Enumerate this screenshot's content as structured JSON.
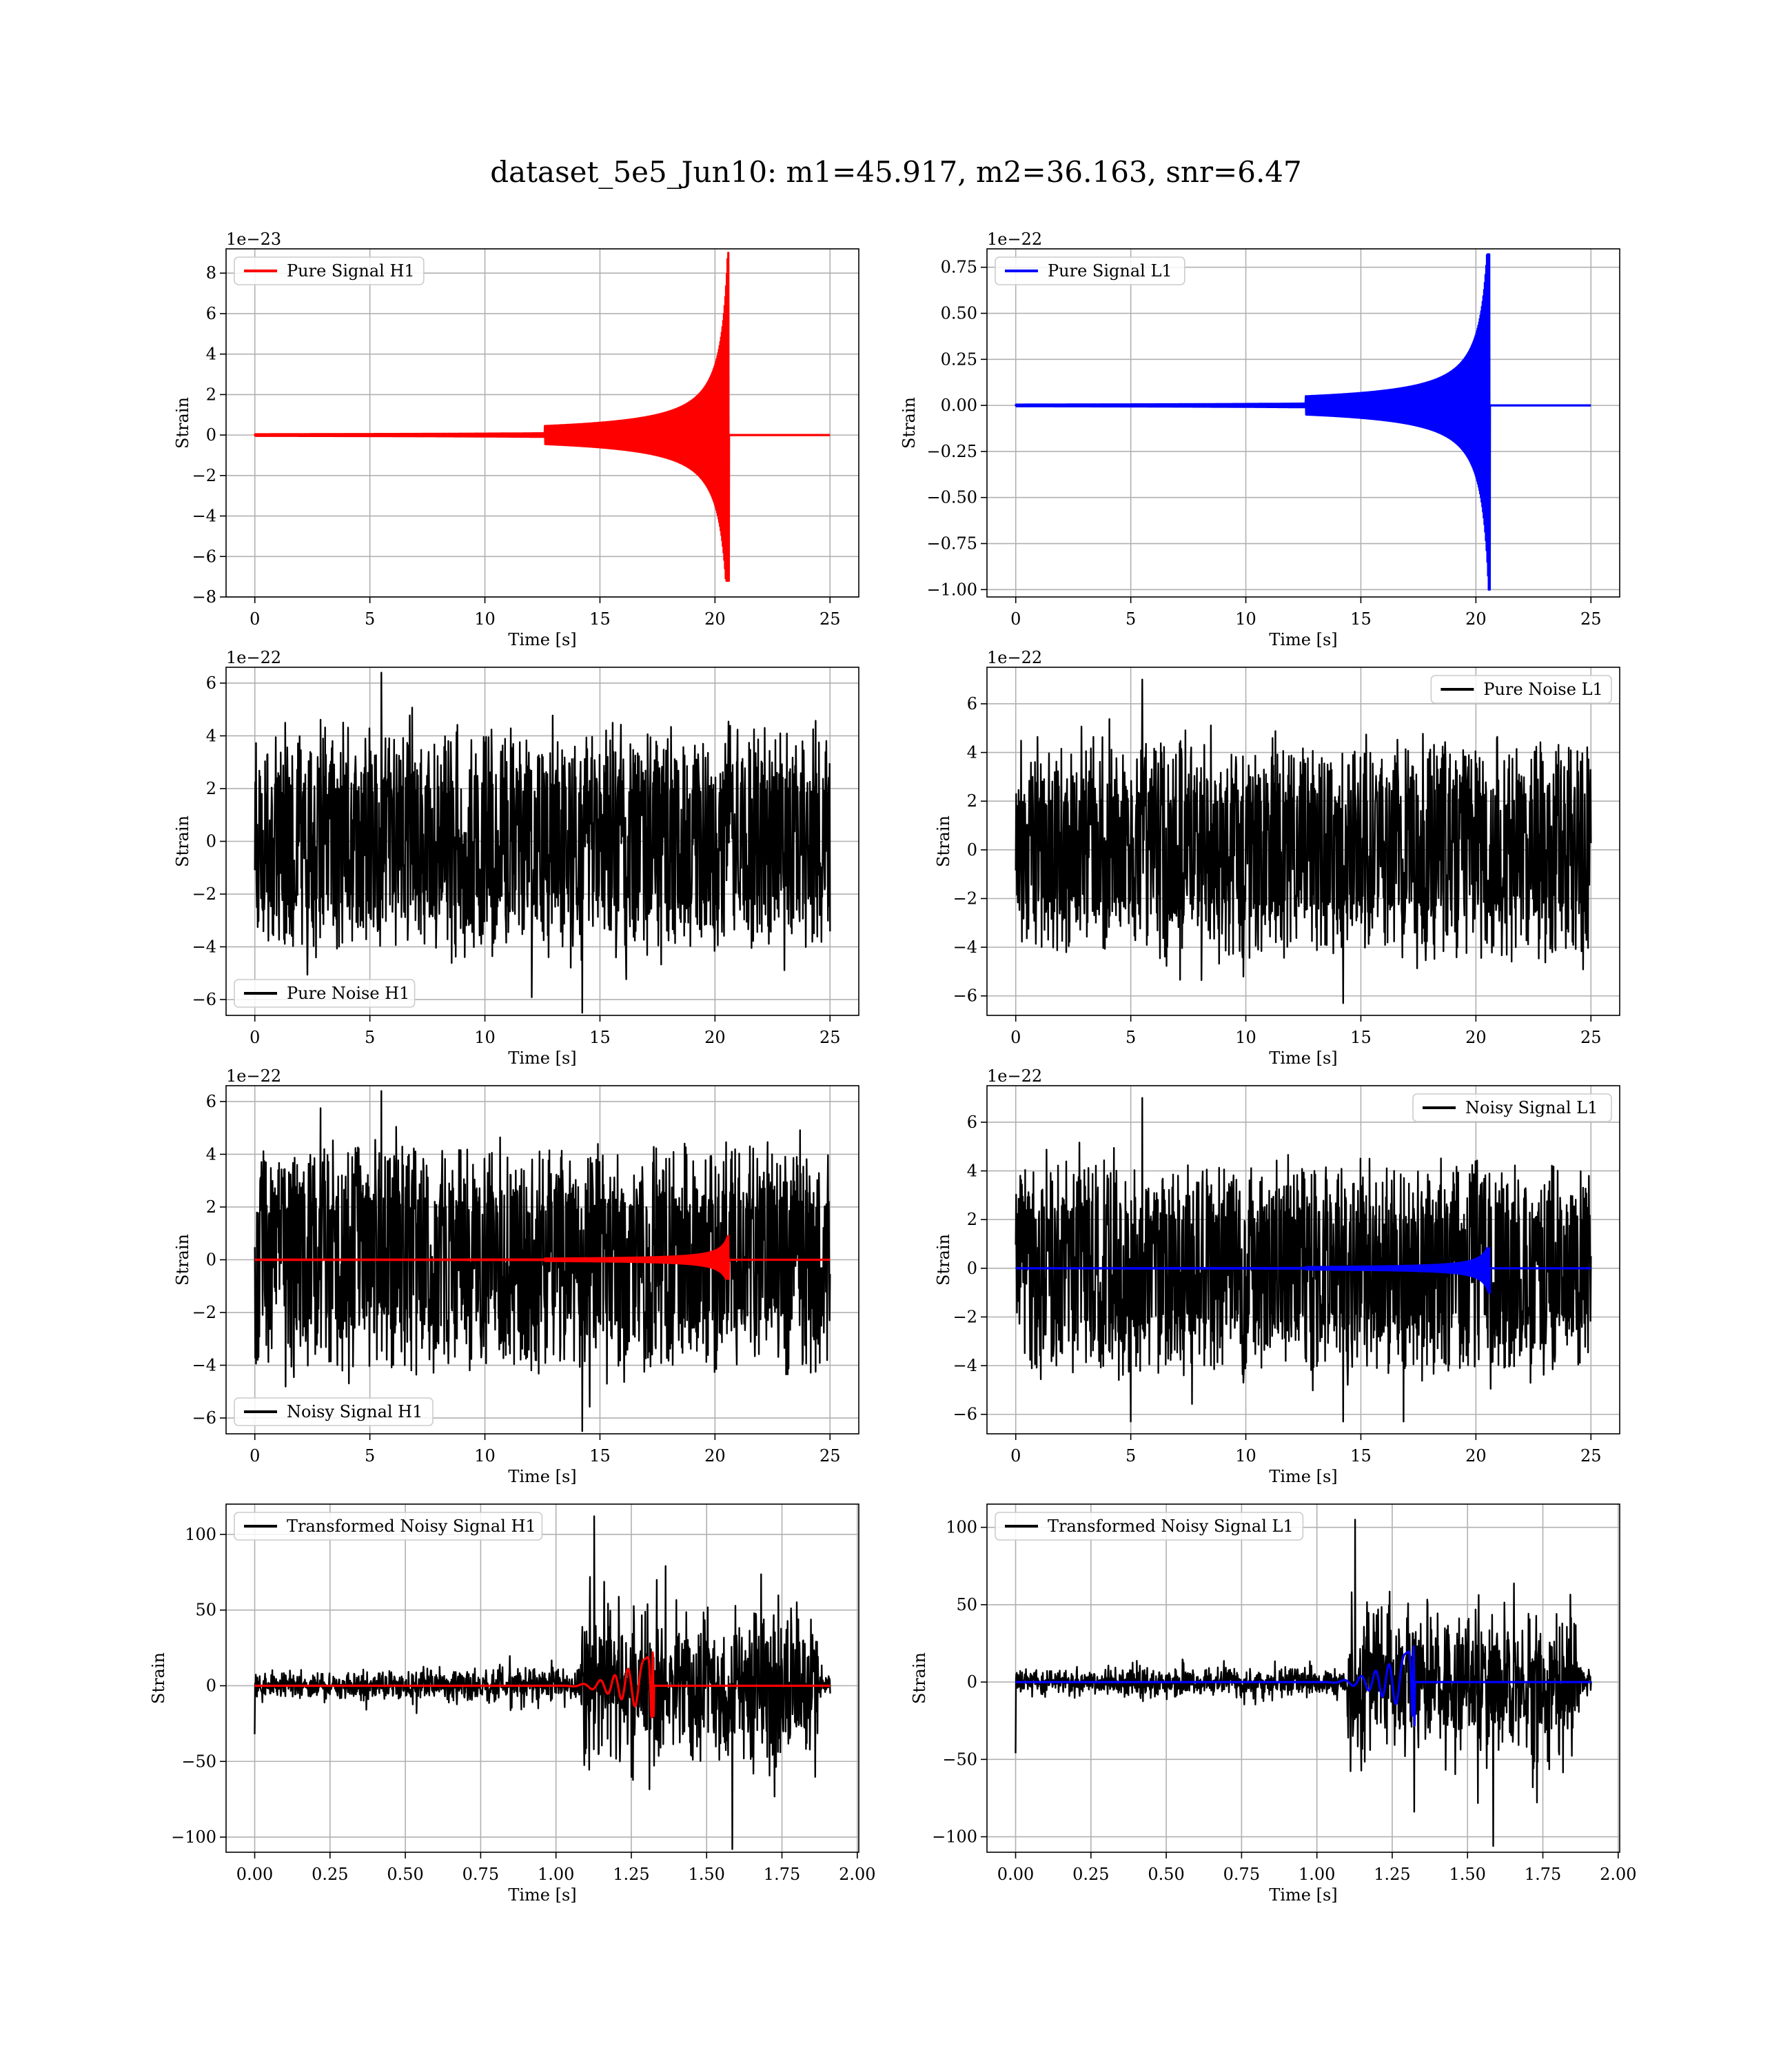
{
  "figure": {
    "title": "dataset_5e5_Jun10: m1=45.917, m2=36.163, snr=6.47"
  },
  "colors": {
    "h1_signal": "#ff0000",
    "l1_signal": "#0000ff",
    "noise": "#000000",
    "grid": "#b0b0b0"
  },
  "chart_data": [
    {
      "type": "line",
      "panel": "top-left",
      "title": "",
      "xlabel": "Time [s]",
      "ylabel": "Strain",
      "offset_label": "1e−23",
      "xlim": [
        -1.25,
        26.25
      ],
      "ylim": [
        -8,
        9.2
      ],
      "xticks": [
        0,
        5,
        10,
        15,
        20,
        25
      ],
      "xtick_labels": [
        "0",
        "5",
        "10",
        "15",
        "20",
        "25"
      ],
      "yticks": [
        -8,
        -6,
        -4,
        -2,
        0,
        2,
        4,
        6,
        8
      ],
      "ytick_labels": [
        "−8",
        "−6",
        "−4",
        "−2",
        "0",
        "2",
        "4",
        "6",
        "8"
      ],
      "grid": true,
      "legend_position": "upper left",
      "series": [
        {
          "name": "Pure Signal H1",
          "color": "#ff0000",
          "kind": "chirp",
          "t_start": 0,
          "t_end": 25,
          "t_merger": 20.6,
          "peak_pos": 9.0,
          "peak_neg": -7.2
        }
      ]
    },
    {
      "type": "line",
      "panel": "top-right",
      "title": "",
      "xlabel": "Time [s]",
      "ylabel": "Strain",
      "offset_label": "1e−22",
      "xlim": [
        -1.25,
        26.25
      ],
      "ylim": [
        -1.04,
        0.85
      ],
      "xticks": [
        0,
        5,
        10,
        15,
        20,
        25
      ],
      "xtick_labels": [
        "0",
        "5",
        "10",
        "15",
        "20",
        "25"
      ],
      "yticks": [
        -1.0,
        -0.75,
        -0.5,
        -0.25,
        0.0,
        0.25,
        0.5,
        0.75
      ],
      "ytick_labels": [
        "−1.00",
        "−0.75",
        "−0.50",
        "−0.25",
        "0.00",
        "0.25",
        "0.50",
        "0.75"
      ],
      "grid": true,
      "legend_position": "upper left",
      "series": [
        {
          "name": "Pure Signal L1",
          "color": "#0000ff",
          "kind": "chirp",
          "t_start": 0,
          "t_end": 25,
          "t_merger": 20.6,
          "peak_pos": 0.82,
          "peak_neg": -1.0
        }
      ]
    },
    {
      "type": "line",
      "panel": "row2-left",
      "title": "",
      "xlabel": "Time [s]",
      "ylabel": "Strain",
      "offset_label": "1e−22",
      "xlim": [
        -1.25,
        26.25
      ],
      "ylim": [
        -6.6,
        6.6
      ],
      "xticks": [
        0,
        5,
        10,
        15,
        20,
        25
      ],
      "xtick_labels": [
        "0",
        "5",
        "10",
        "15",
        "20",
        "25"
      ],
      "yticks": [
        -6,
        -4,
        -2,
        0,
        2,
        4,
        6
      ],
      "ytick_labels": [
        "−6",
        "−4",
        "−2",
        "0",
        "2",
        "4",
        "6"
      ],
      "grid": true,
      "legend_position": "lower left",
      "series": [
        {
          "name": "Pure Noise H1",
          "color": "#000000",
          "kind": "noise",
          "t_start": 0,
          "t_end": 25,
          "core": 3.5,
          "max": 6.4,
          "min": -6.5
        }
      ]
    },
    {
      "type": "line",
      "panel": "row2-right",
      "title": "",
      "xlabel": "Time [s]",
      "ylabel": "Strain",
      "offset_label": "1e−22",
      "xlim": [
        -1.25,
        26.25
      ],
      "ylim": [
        -6.8,
        7.5
      ],
      "xticks": [
        0,
        5,
        10,
        15,
        20,
        25
      ],
      "xtick_labels": [
        "0",
        "5",
        "10",
        "15",
        "20",
        "25"
      ],
      "yticks": [
        -6,
        -4,
        -2,
        0,
        2,
        4,
        6
      ],
      "ytick_labels": [
        "−6",
        "−4",
        "−2",
        "0",
        "2",
        "4",
        "6"
      ],
      "grid": true,
      "legend_position": "upper right",
      "series": [
        {
          "name": "Pure Noise L1",
          "color": "#000000",
          "kind": "noise",
          "t_start": 0,
          "t_end": 25,
          "core": 3.6,
          "max": 7.0,
          "min": -6.3
        }
      ]
    },
    {
      "type": "line",
      "panel": "row3-left",
      "title": "",
      "xlabel": "Time [s]",
      "ylabel": "Strain",
      "offset_label": "1e−22",
      "xlim": [
        -1.25,
        26.25
      ],
      "ylim": [
        -6.6,
        6.6
      ],
      "xticks": [
        0,
        5,
        10,
        15,
        20,
        25
      ],
      "xtick_labels": [
        "0",
        "5",
        "10",
        "15",
        "20",
        "25"
      ],
      "yticks": [
        -6,
        -4,
        -2,
        0,
        2,
        4,
        6
      ],
      "ytick_labels": [
        "−6",
        "−4",
        "−2",
        "0",
        "2",
        "4",
        "6"
      ],
      "grid": true,
      "legend_position": "lower left",
      "series": [
        {
          "name": "Noisy Signal H1",
          "color": "#000000",
          "kind": "noise",
          "t_start": 0,
          "t_end": 25,
          "core": 3.5,
          "max": 6.4,
          "min": -6.5
        },
        {
          "name": "",
          "color": "#ff0000",
          "kind": "chirp",
          "t_start": 0,
          "t_end": 25,
          "t_merger": 20.6,
          "peak_pos": 0.9,
          "peak_neg": -0.72
        }
      ]
    },
    {
      "type": "line",
      "panel": "row3-right",
      "title": "",
      "xlabel": "Time [s]",
      "ylabel": "Strain",
      "offset_label": "1e−22",
      "xlim": [
        -1.25,
        26.25
      ],
      "ylim": [
        -6.8,
        7.5
      ],
      "xticks": [
        0,
        5,
        10,
        15,
        20,
        25
      ],
      "xtick_labels": [
        "0",
        "5",
        "10",
        "15",
        "20",
        "25"
      ],
      "yticks": [
        -6,
        -4,
        -2,
        0,
        2,
        4,
        6
      ],
      "ytick_labels": [
        "−6",
        "−4",
        "−2",
        "0",
        "2",
        "4",
        "6"
      ],
      "grid": true,
      "legend_position": "upper right",
      "series": [
        {
          "name": "Noisy Signal L1",
          "color": "#000000",
          "kind": "noise",
          "t_start": 0,
          "t_end": 25,
          "core": 3.6,
          "max": 7.0,
          "min": -6.3
        },
        {
          "name": "",
          "color": "#0000ff",
          "kind": "chirp",
          "t_start": 0,
          "t_end": 25,
          "t_merger": 20.6,
          "peak_pos": 0.82,
          "peak_neg": -1.0
        }
      ]
    },
    {
      "type": "line",
      "panel": "row4-left",
      "title": "",
      "xlabel": "Time [s]",
      "ylabel": "Strain",
      "offset_label": "",
      "xlim": [
        -0.095,
        2.005
      ],
      "ylim": [
        -110,
        120
      ],
      "xticks": [
        0,
        0.25,
        0.5,
        0.75,
        1.0,
        1.25,
        1.5,
        1.75,
        2.0
      ],
      "xtick_labels": [
        "0.00",
        "0.25",
        "0.50",
        "0.75",
        "1.00",
        "1.25",
        "1.50",
        "1.75",
        "2.00"
      ],
      "yticks": [
        -100,
        -50,
        0,
        50,
        100
      ],
      "ytick_labels": [
        "−100",
        "−50",
        "0",
        "50",
        "100"
      ],
      "grid": true,
      "legend_position": "upper left",
      "series": [
        {
          "name": "Transformed Noisy Signal H1",
          "color": "#000000",
          "kind": "whitened",
          "t_start": 0,
          "t_end": 1.91,
          "low_amp": 8,
          "high_amp": 45,
          "t_rise": 1.08,
          "t_fall": 1.87,
          "max": 112,
          "min": -108,
          "spike_start": -32
        },
        {
          "name": "",
          "color": "#ff0000",
          "kind": "whitened-chirp",
          "t_start": 0,
          "t_end": 1.91,
          "t_merger": 1.325,
          "peak_pos": 22,
          "peak_neg": -20
        }
      ]
    },
    {
      "type": "line",
      "panel": "row4-right",
      "title": "",
      "xlabel": "Time [s]",
      "ylabel": "Strain",
      "offset_label": "",
      "xlim": [
        -0.095,
        2.005
      ],
      "ylim": [
        -110,
        115
      ],
      "xticks": [
        0,
        0.25,
        0.5,
        0.75,
        1.0,
        1.25,
        1.5,
        1.75,
        2.0
      ],
      "xtick_labels": [
        "0.00",
        "0.25",
        "0.50",
        "0.75",
        "1.00",
        "1.25",
        "1.50",
        "1.75",
        "2.00"
      ],
      "yticks": [
        -100,
        -50,
        0,
        50,
        100
      ],
      "ytick_labels": [
        "−100",
        "−50",
        "0",
        "50",
        "100"
      ],
      "grid": true,
      "legend_position": "upper left",
      "series": [
        {
          "name": "Transformed Noisy Signal L1",
          "color": "#000000",
          "kind": "whitened",
          "t_start": 0,
          "t_end": 1.91,
          "low_amp": 7,
          "high_amp": 45,
          "t_rise": 1.1,
          "t_fall": 1.87,
          "max": 105,
          "min": -106,
          "spike_start": -46
        },
        {
          "name": "",
          "color": "#0000ff",
          "kind": "whitened-chirp",
          "t_start": 0,
          "t_end": 1.91,
          "t_merger": 1.325,
          "peak_pos": 23,
          "peak_neg": -28
        }
      ]
    }
  ]
}
